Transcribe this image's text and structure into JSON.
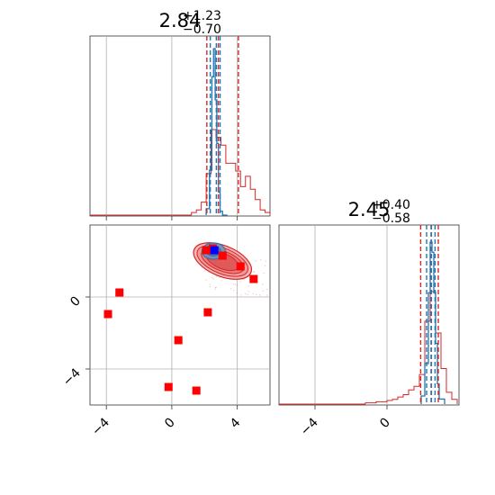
{
  "chart_data": {
    "type": "corner",
    "grid": true,
    "colors": {
      "red": "#d62728",
      "blue": "#1f77b4",
      "square": "#ff0000",
      "center": "#0000ff"
    },
    "param1": {
      "title": {
        "value": "2.84",
        "plus": "+1.23",
        "minus": "−0.70"
      },
      "range": [
        -5,
        6
      ],
      "red_quantiles": [
        2.14,
        2.84,
        4.07
      ],
      "blue_quantiles": [
        2.35,
        2.72,
        2.95
      ],
      "red_hist": {
        "bins": [
          1.2,
          1.5,
          1.8,
          2.1,
          2.4,
          2.7,
          3.0,
          3.3,
          3.6,
          3.9,
          4.2,
          4.5,
          4.8,
          5.1,
          5.4,
          5.7
        ],
        "counts": [
          1,
          2,
          5,
          16,
          33,
          30,
          27,
          20,
          20,
          17,
          11,
          15,
          10,
          6,
          2,
          1
        ]
      },
      "blue_hist": {
        "bins": [
          2.1,
          2.3,
          2.45,
          2.55,
          2.65,
          2.75,
          2.85,
          2.95,
          3.1
        ],
        "counts": [
          5,
          35,
          108,
          130,
          90,
          56,
          18,
          3,
          0
        ]
      }
    },
    "param2": {
      "title": {
        "value": "2.45",
        "plus": "+0.40",
        "minus": "−0.58"
      },
      "range": [
        -6,
        4
      ],
      "red_quantiles": [
        1.87,
        2.45,
        2.85
      ],
      "blue_quantiles": [
        2.2,
        2.47,
        2.67
      ],
      "red_hist": {
        "bins": [
          -1.2,
          -0.9,
          -0.6,
          -0.3,
          0.0,
          0.3,
          0.6,
          0.9,
          1.2,
          1.5,
          1.8,
          2.1,
          2.4,
          2.7,
          3.0,
          3.3,
          3.6
        ],
        "counts": [
          1,
          1,
          2,
          2,
          3,
          4,
          6,
          8,
          12,
          15,
          25,
          70,
          95,
          60,
          30,
          10,
          4
        ]
      },
      "blue_hist": {
        "bins": [
          1.9,
          2.1,
          2.3,
          2.4,
          2.5,
          2.6,
          2.7,
          2.8,
          2.9
        ],
        "counts": [
          8,
          40,
          110,
          160,
          150,
          110,
          60,
          20,
          5
        ]
      }
    },
    "scatter_points": [
      {
        "x": 5.0,
        "y": 1.0
      },
      {
        "x": 4.2,
        "y": 1.7
      },
      {
        "x": 3.1,
        "y": 2.3
      },
      {
        "x": 2.5,
        "y": 2.7
      },
      {
        "x": 2.1,
        "y": 2.6
      },
      {
        "x": -3.2,
        "y": 0.25
      },
      {
        "x": -3.9,
        "y": -0.95
      },
      {
        "x": 2.2,
        "y": -0.85
      },
      {
        "x": 0.4,
        "y": -2.4
      },
      {
        "x": -0.2,
        "y": -5.0
      },
      {
        "x": 1.5,
        "y": -5.2
      }
    ],
    "center_point": {
      "x": 2.6,
      "y": 2.6
    },
    "ticks": {
      "p1": [
        -4,
        0,
        4
      ],
      "p2": [
        -4,
        0
      ],
      "p1_labels": [
        "−4",
        "0",
        "4"
      ],
      "p2_labels": [
        "−4",
        "0"
      ]
    }
  }
}
